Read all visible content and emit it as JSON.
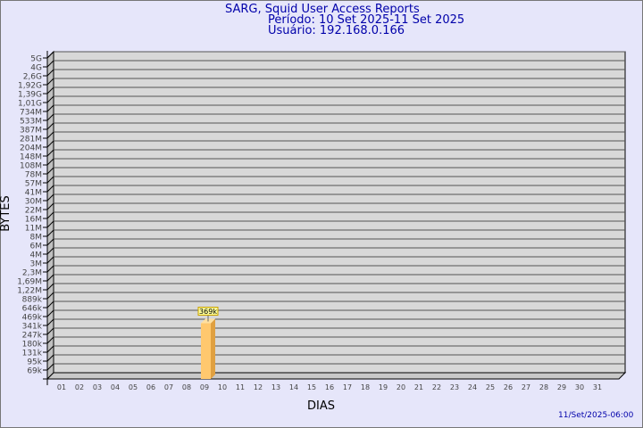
{
  "header": {
    "title": "SARG, Squid User Access Reports",
    "period": "Período: 10 Set 2025-11 Set 2025",
    "user": "Usuário: 192.168.0.166"
  },
  "footer": {
    "timestamp": "11/Set/2025-06:00"
  },
  "chart_data": {
    "type": "bar",
    "xlabel": "DIAS",
    "ylabel": "BYTES",
    "yscale": "log",
    "grid": true,
    "y_ticks": [
      "5G",
      "4G",
      "2,6G",
      "1,92G",
      "1,39G",
      "1,01G",
      "734M",
      "533M",
      "387M",
      "281M",
      "204M",
      "148M",
      "108M",
      "78M",
      "57M",
      "41M",
      "30M",
      "22M",
      "16M",
      "11M",
      "8M",
      "6M",
      "4M",
      "3M",
      "2,3M",
      "1,69M",
      "1,22M",
      "889k",
      "646k",
      "469k",
      "341k",
      "247k",
      "180k",
      "131k",
      "95k",
      "69k"
    ],
    "categories": [
      "01",
      "02",
      "03",
      "04",
      "05",
      "06",
      "07",
      "08",
      "09",
      "10",
      "11",
      "12",
      "13",
      "14",
      "15",
      "16",
      "17",
      "18",
      "19",
      "20",
      "21",
      "22",
      "23",
      "24",
      "25",
      "26",
      "27",
      "28",
      "29",
      "30",
      "31"
    ],
    "values": [
      null,
      null,
      null,
      null,
      null,
      null,
      null,
      null,
      null,
      369000,
      null,
      null,
      null,
      null,
      null,
      null,
      null,
      null,
      null,
      null,
      null,
      null,
      null,
      null,
      null,
      null,
      null,
      null,
      null,
      null,
      null
    ],
    "data_labels": {
      "10": "369k"
    },
    "colors": {
      "bar": "#ffc86e",
      "bar_side": "#e0a040",
      "plot_bg": "#d8d8d8",
      "text": "#0000aa"
    }
  }
}
